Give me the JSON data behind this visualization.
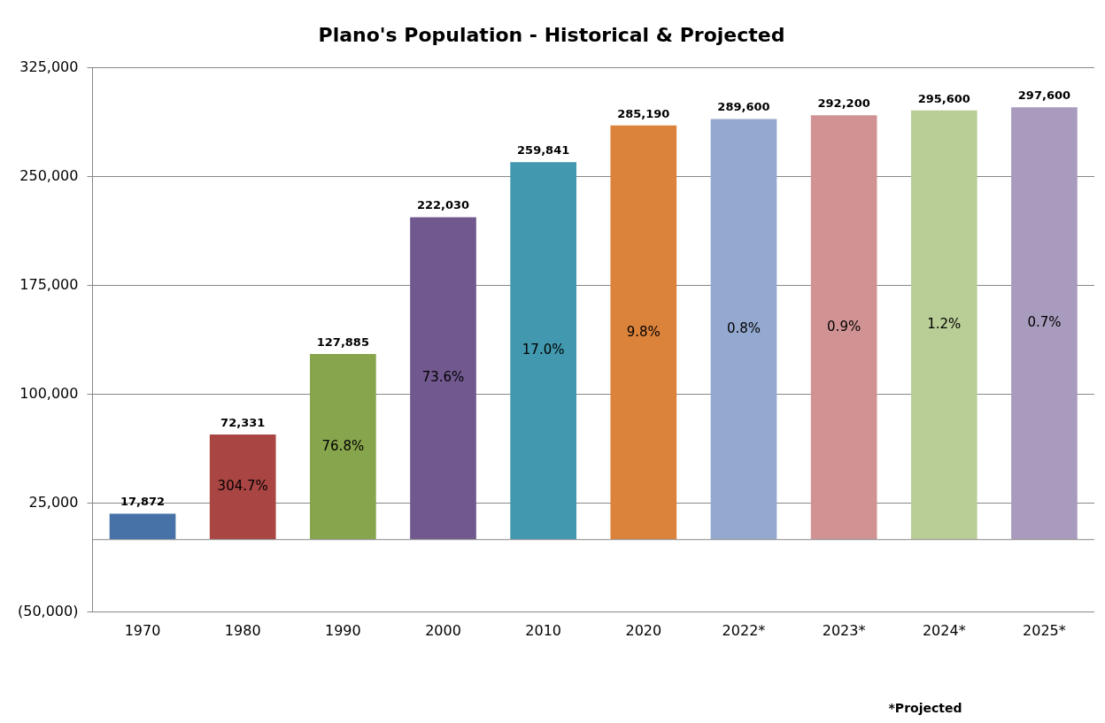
{
  "chart_data": {
    "type": "bar",
    "title": "Plano's Population - Historical & Projected",
    "categories": [
      "1970",
      "1980",
      "1990",
      "2000",
      "2010",
      "2020",
      "2022*",
      "2023*",
      "2024*",
      "2025*"
    ],
    "values": [
      17872,
      72331,
      127885,
      222030,
      259841,
      285190,
      289600,
      292200,
      295600,
      297600
    ],
    "colors": [
      "#4672a8",
      "#a94543",
      "#87a54c",
      "#71598f",
      "#4198af",
      "#db823b",
      "#94a9cf",
      "#d09292",
      "#b9cd96",
      "#a99bbd"
    ],
    "ylim": [
      -50000,
      325000
    ],
    "yticks": [
      {
        "value": -50000,
        "label": "(50,000)"
      },
      {
        "value": 25000,
        "label": "25,000"
      },
      {
        "value": 100000,
        "label": "100,000"
      },
      {
        "value": 175000,
        "label": "175,000"
      },
      {
        "value": 250000,
        "label": "250,000"
      },
      {
        "value": 325000,
        "label": "325,000"
      }
    ],
    "grid": "y",
    "legend": false,
    "value_labels": [
      "17,872",
      "72,331",
      "127,885",
      "222,030",
      "259,841",
      "285,190",
      "289,600",
      "292,200",
      "295,600",
      "297,600"
    ],
    "annotations": [
      "304.7%",
      "76.8%",
      "73.6%",
      "17.0%",
      "9.8%",
      "0.8%",
      "0.9%",
      "1.2%",
      "0.7%",
      "*Projected"
    ]
  }
}
